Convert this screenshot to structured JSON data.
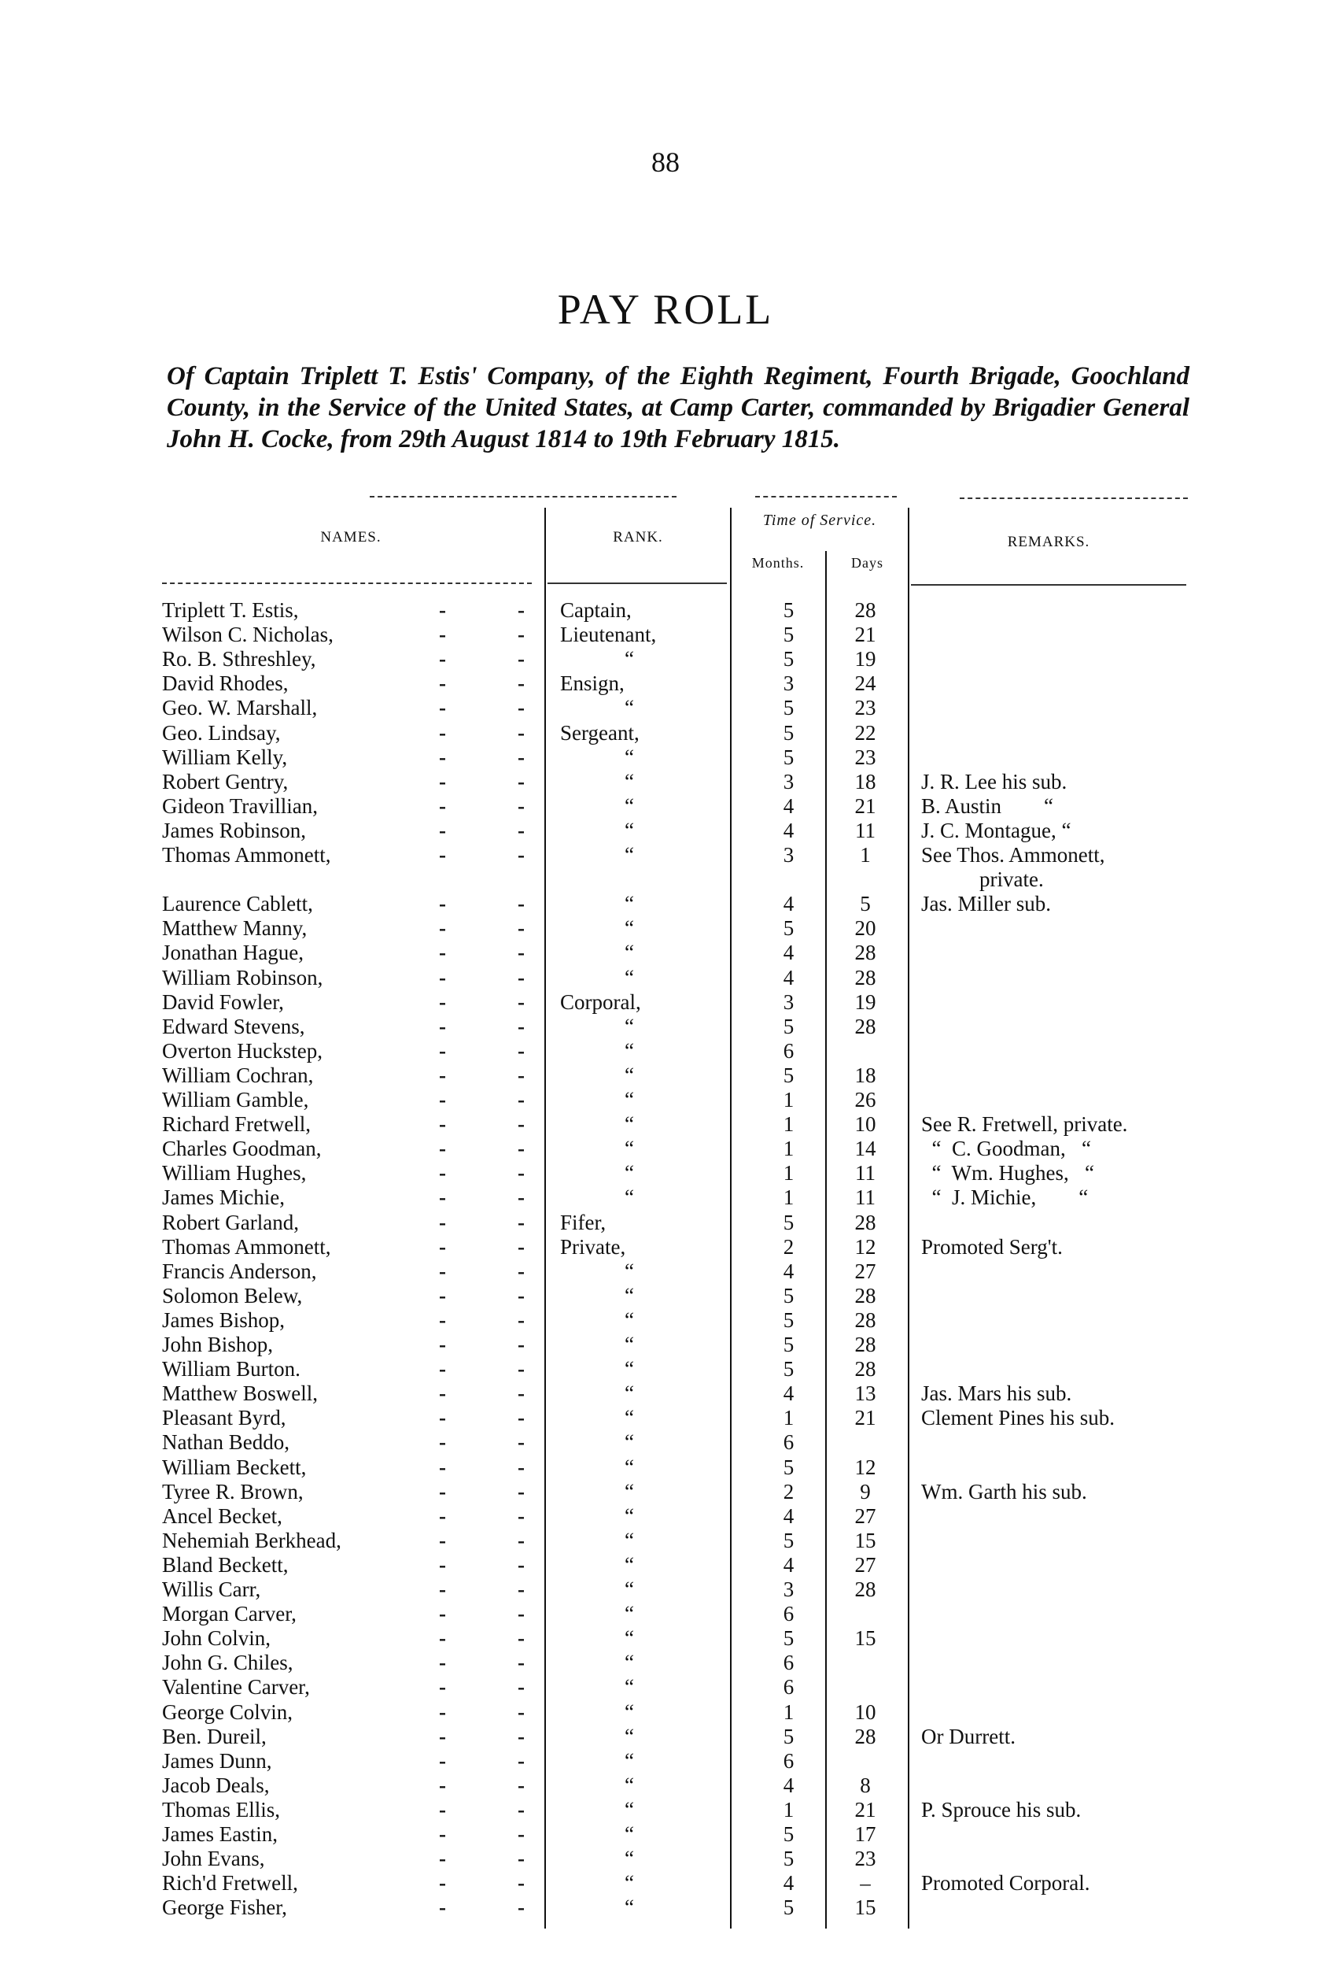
{
  "page_number": "88",
  "title": "PAY ROLL",
  "subtitle": "Of Captain Triplett T. Estis' Company, of the Eighth Regiment, Fourth Brigade, Goochland County, in the Service of the United States, at Camp Carter, commanded by Brigadier General John H. Cocke, from 29th August 1814 to 19th February 1815.",
  "table": {
    "headers": {
      "names": "NAMES.",
      "rank": "RANK.",
      "time_of_service": "Time of Service.",
      "months": "Months.",
      "days": "Days",
      "remarks": "REMARKS."
    },
    "dot": "-",
    "rows": [
      {
        "name": "Triplett T. Estis,",
        "rank": "Captain,",
        "months": "5",
        "days": "28",
        "remarks": ""
      },
      {
        "name": "Wilson C. Nicholas,",
        "rank": "Lieutenant,",
        "months": "5",
        "days": "21",
        "remarks": ""
      },
      {
        "name": "Ro. B. Sthreshley,",
        "rank": "“",
        "months": "5",
        "days": "19",
        "remarks": ""
      },
      {
        "name": "David Rhodes,",
        "rank": "Ensign,",
        "months": "3",
        "days": "24",
        "remarks": ""
      },
      {
        "name": "Geo. W. Marshall,",
        "rank": "“",
        "months": "5",
        "days": "23",
        "remarks": ""
      },
      {
        "name": "Geo. Lindsay,",
        "rank": "Sergeant,",
        "months": "5",
        "days": "22",
        "remarks": ""
      },
      {
        "name": "William Kelly,",
        "rank": "“",
        "months": "5",
        "days": "23",
        "remarks": ""
      },
      {
        "name": "Robert Gentry,",
        "rank": "“",
        "months": "3",
        "days": "18",
        "remarks": "J. R. Lee his sub."
      },
      {
        "name": "Gideon Travillian,",
        "rank": "“",
        "months": "4",
        "days": "21",
        "remarks": "B. Austin        “"
      },
      {
        "name": "James Robinson,",
        "rank": "“",
        "months": "4",
        "days": "11",
        "remarks": "J. C. Montague, “"
      },
      {
        "name": "Thomas Ammonett,",
        "rank": "“",
        "months": "3",
        "days": "1",
        "remarks": "See Thos. Ammonett,",
        "remarks2": "private."
      },
      {
        "name": "Laurence Cablett,",
        "rank": "“",
        "months": "4",
        "days": "5",
        "remarks": "Jas. Miller sub."
      },
      {
        "name": "Matthew Manny,",
        "rank": "“",
        "months": "5",
        "days": "20",
        "remarks": ""
      },
      {
        "name": "Jonathan Hague,",
        "rank": "“",
        "months": "4",
        "days": "28",
        "remarks": ""
      },
      {
        "name": "William Robinson,",
        "rank": "“",
        "months": "4",
        "days": "28",
        "remarks": ""
      },
      {
        "name": "David Fowler,",
        "rank": "Corporal,",
        "months": "3",
        "days": "19",
        "remarks": ""
      },
      {
        "name": "Edward Stevens,",
        "rank": "“",
        "months": "5",
        "days": "28",
        "remarks": ""
      },
      {
        "name": "Overton Huckstep,",
        "rank": "“",
        "months": "6",
        "days": "",
        "remarks": ""
      },
      {
        "name": "William Cochran,",
        "rank": "“",
        "months": "5",
        "days": "18",
        "remarks": ""
      },
      {
        "name": "William Gamble,",
        "rank": "“",
        "months": "1",
        "days": "26",
        "remarks": ""
      },
      {
        "name": "Richard Fretwell,",
        "rank": "“",
        "months": "1",
        "days": "10",
        "remarks": "See R. Fretwell, private."
      },
      {
        "name": "Charles Goodman,",
        "rank": "“",
        "months": "1",
        "days": "14",
        "remarks": "  “  C. Goodman,   “"
      },
      {
        "name": "William Hughes,",
        "rank": "“",
        "months": "1",
        "days": "11",
        "remarks": "  “  Wm. Hughes,   “"
      },
      {
        "name": "James Michie,",
        "rank": "“",
        "months": "1",
        "days": "11",
        "remarks": "  “  J. Michie,        “"
      },
      {
        "name": "Robert Garland,",
        "rank": "Fifer,",
        "months": "5",
        "days": "28",
        "remarks": ""
      },
      {
        "name": "Thomas Ammonett,",
        "rank": "Private,",
        "months": "2",
        "days": "12",
        "remarks": "Promoted Serg't."
      },
      {
        "name": "Francis Anderson,",
        "rank": "“",
        "months": "4",
        "days": "27",
        "remarks": ""
      },
      {
        "name": "Solomon Belew,",
        "rank": "“",
        "months": "5",
        "days": "28",
        "remarks": ""
      },
      {
        "name": "James Bishop,",
        "rank": "“",
        "months": "5",
        "days": "28",
        "remarks": ""
      },
      {
        "name": "John Bishop,",
        "rank": "“",
        "months": "5",
        "days": "28",
        "remarks": ""
      },
      {
        "name": "William Burton.",
        "rank": "“",
        "months": "5",
        "days": "28",
        "remarks": ""
      },
      {
        "name": "Matthew Boswell,",
        "rank": "“",
        "months": "4",
        "days": "13",
        "remarks": "Jas. Mars his sub."
      },
      {
        "name": "Pleasant Byrd,",
        "rank": "“",
        "months": "1",
        "days": "21",
        "remarks": "Clement Pines his sub."
      },
      {
        "name": "Nathan Beddo,",
        "rank": "“",
        "months": "6",
        "days": "",
        "remarks": ""
      },
      {
        "name": "William Beckett,",
        "rank": "“",
        "months": "5",
        "days": "12",
        "remarks": ""
      },
      {
        "name": "Tyree R. Brown,",
        "rank": "“",
        "months": "2",
        "days": "9",
        "remarks": "Wm. Garth his sub."
      },
      {
        "name": "Ancel Becket,",
        "rank": "“",
        "months": "4",
        "days": "27",
        "remarks": ""
      },
      {
        "name": "Nehemiah Berkhead,",
        "rank": "“",
        "months": "5",
        "days": "15",
        "remarks": ""
      },
      {
        "name": "Bland Beckett,",
        "rank": "“",
        "months": "4",
        "days": "27",
        "remarks": ""
      },
      {
        "name": "Willis Carr,",
        "rank": "“",
        "months": "3",
        "days": "28",
        "remarks": ""
      },
      {
        "name": "Morgan Carver,",
        "rank": "“",
        "months": "6",
        "days": "",
        "remarks": ""
      },
      {
        "name": "John Colvin,",
        "rank": "“",
        "months": "5",
        "days": "15",
        "remarks": ""
      },
      {
        "name": "John G. Chiles,",
        "rank": "“",
        "months": "6",
        "days": "",
        "remarks": ""
      },
      {
        "name": "Valentine Carver,",
        "rank": "“",
        "months": "6",
        "days": "",
        "remarks": ""
      },
      {
        "name": "George Colvin,",
        "rank": "“",
        "months": "1",
        "days": "10",
        "remarks": ""
      },
      {
        "name": "Ben. Dureil,",
        "rank": "“",
        "months": "5",
        "days": "28",
        "remarks": "Or Durrett."
      },
      {
        "name": "James Dunn,",
        "rank": "“",
        "months": "6",
        "days": "",
        "remarks": ""
      },
      {
        "name": "Jacob Deals,",
        "rank": "“",
        "months": "4",
        "days": "8",
        "remarks": ""
      },
      {
        "name": "Thomas Ellis,",
        "rank": "“",
        "months": "1",
        "days": "21",
        "remarks": "P. Sprouce his sub."
      },
      {
        "name": "James Eastin,",
        "rank": "“",
        "months": "5",
        "days": "17",
        "remarks": ""
      },
      {
        "name": "John Evans,",
        "rank": "“",
        "months": "5",
        "days": "23",
        "remarks": ""
      },
      {
        "name": "Rich'd Fretwell,",
        "rank": "“",
        "months": "4",
        "days": "–",
        "remarks": "Promoted Corporal."
      },
      {
        "name": "George Fisher,",
        "rank": "“",
        "months": "5",
        "days": "15",
        "remarks": ""
      }
    ]
  }
}
